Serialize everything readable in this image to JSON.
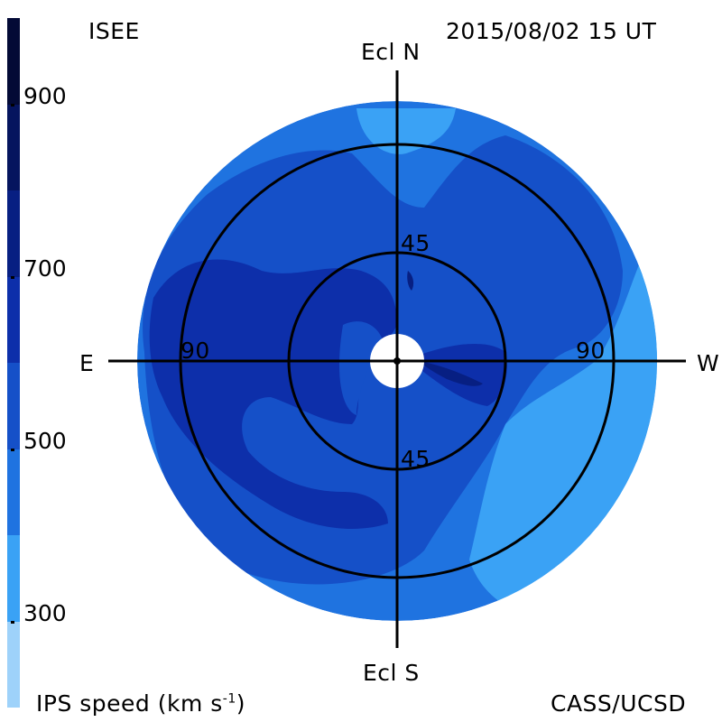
{
  "header": {
    "left_label": "ISEE",
    "timestamp": "2015/08/02 15 UT"
  },
  "footer": {
    "left_label": "IPS speed (km s",
    "left_label_exp": "-1",
    "left_label_end": ")",
    "right_label": "CASS/UCSD"
  },
  "directions": {
    "north": "Ecl N",
    "south": "Ecl S",
    "east": "E",
    "west": "W"
  },
  "rings": {
    "inner": "45",
    "inner_lower": "45",
    "outer_left": "90",
    "outer_right": "90"
  },
  "colorbar": {
    "ticks": [
      {
        "label": "900",
        "value": 900
      },
      {
        "label": "700",
        "value": 700
      },
      {
        "label": "500",
        "value": 500
      },
      {
        "label": "300",
        "value": 300
      }
    ],
    "levels": [
      {
        "min": 200,
        "max": 300,
        "color": "#9ed2fa"
      },
      {
        "min": 300,
        "max": 400,
        "color": "#3aa2f5"
      },
      {
        "min": 400,
        "max": 500,
        "color": "#1f73e0"
      },
      {
        "min": 500,
        "max": 600,
        "color": "#1550c8"
      },
      {
        "min": 600,
        "max": 700,
        "color": "#0d2faa"
      },
      {
        "min": 700,
        "max": 800,
        "color": "#071f82"
      },
      {
        "min": 800,
        "max": 900,
        "color": "#05145e"
      },
      {
        "min": 900,
        "max": 1000,
        "color": "#030a36"
      }
    ],
    "range": [
      200,
      1000
    ]
  },
  "colors": {
    "background": "#ffffff",
    "sky_base": "#1f73e0",
    "slow_wind": "#3aa2f5",
    "medium_wind": "#1550c8",
    "fast_wind": "#0d2faa",
    "fastest_wind": "#071f82",
    "sun_occult": "#ffffff",
    "grid": "#000000"
  }
}
